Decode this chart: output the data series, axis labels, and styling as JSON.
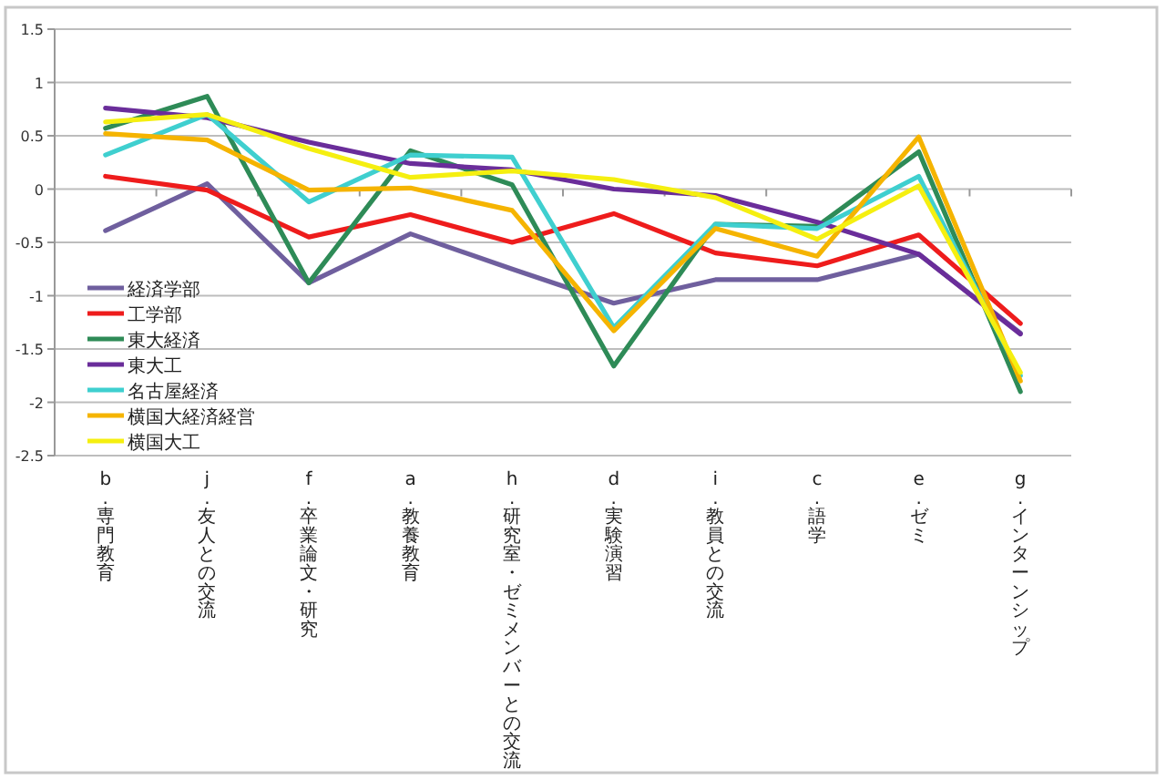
{
  "chart_data": {
    "type": "line",
    "categories": [
      "b.専門教育",
      "j.友人との交流",
      "f.卒業論文・研究",
      "a.教養教育",
      "h.研究室・ゼミメンバーとの交流",
      "d.実験演習",
      "i.教員との交流",
      "c.語学",
      "e.ゼミ",
      "g.インターンシップ"
    ],
    "series": [
      {
        "name": "経済学部",
        "color": "#6f5f9e",
        "values": [
          -0.39,
          0.05,
          -0.88,
          -0.42,
          -0.75,
          -1.07,
          -0.85,
          -0.85,
          -0.61,
          -1.35
        ]
      },
      {
        "name": "工学部",
        "color": "#ee1c1c",
        "values": [
          0.12,
          -0.01,
          -0.45,
          -0.24,
          -0.5,
          -0.23,
          -0.6,
          -0.72,
          -0.43,
          -1.26
        ]
      },
      {
        "name": "東大経済",
        "color": "#2e8b57",
        "values": [
          0.57,
          0.87,
          -0.88,
          0.36,
          0.04,
          -1.66,
          -0.33,
          -0.35,
          0.35,
          -1.9
        ]
      },
      {
        "name": "東大工",
        "color": "#6a2d9a",
        "values": [
          0.76,
          0.67,
          0.44,
          0.24,
          0.18,
          0.0,
          -0.06,
          -0.31,
          -0.61,
          -1.36
        ]
      },
      {
        "name": "名古屋経済",
        "color": "#3fcfcf",
        "values": [
          0.32,
          0.7,
          -0.12,
          0.32,
          0.3,
          -1.3,
          -0.33,
          -0.37,
          0.12,
          -1.75
        ]
      },
      {
        "name": "横国大経済経営",
        "color": "#f5b400",
        "values": [
          0.52,
          0.46,
          -0.01,
          0.01,
          -0.2,
          -1.33,
          -0.37,
          -0.63,
          0.49,
          -1.8
        ]
      },
      {
        "name": "横国大工",
        "color": "#f5ef10",
        "values": [
          0.63,
          0.7,
          0.38,
          0.11,
          0.17,
          0.09,
          -0.08,
          -0.47,
          0.03,
          -1.72
        ]
      }
    ],
    "ylim": [
      -2.5,
      1.5
    ],
    "yticks": [
      -2.5,
      -2,
      -1.5,
      -1,
      -0.5,
      0,
      0.5,
      1,
      1.5
    ],
    "grid": "y",
    "legend": "left",
    "marker": "none",
    "line_style": "solid"
  }
}
